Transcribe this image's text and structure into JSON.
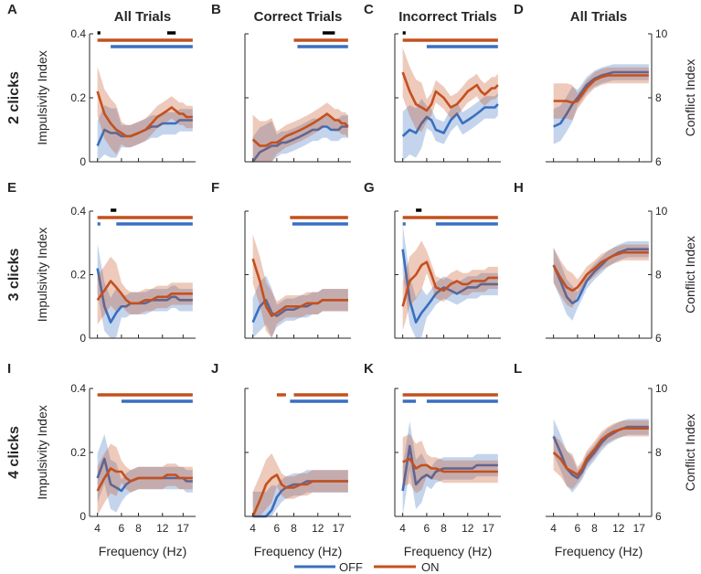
{
  "colors": {
    "off": "#3a6fc0",
    "on": "#c4501e",
    "sig": "#000000",
    "axis": "#262626"
  },
  "legend": {
    "off_label": "OFF",
    "on_label": "ON"
  },
  "row_labels": [
    "2 clicks",
    "3 clicks",
    "4 clicks"
  ],
  "column_titles": [
    "All Trials",
    "Correct Trials",
    "Incorrect Trials",
    "All Trials"
  ],
  "axis_text": {
    "xlabel": "Frequency (Hz)",
    "ylabel_left": "Impulsivity Index",
    "ylabel_right": "Conflict Index",
    "x_ticks": [
      "4",
      "6",
      "8",
      "12",
      "17"
    ],
    "y_ticks_left": [
      "0",
      "0.2",
      "0.4"
    ],
    "y_ticks_right": [
      "6",
      "8",
      "10"
    ]
  },
  "chart_data": {
    "type": "line",
    "x": [
      4,
      4.5,
      5,
      5.5,
      6,
      6.5,
      7,
      8,
      9,
      10,
      11,
      12,
      13,
      14,
      15,
      16,
      17,
      18,
      19,
      20
    ],
    "x_ticks": [
      4,
      6,
      8,
      12,
      17
    ],
    "left_ylim": [
      0,
      0.4
    ],
    "right_ylim": [
      6,
      10
    ],
    "panels": [
      {
        "letter": "A",
        "row": 0,
        "col": 0,
        "title": "All Trials",
        "axis": "left",
        "off": [
          0.05,
          0.1,
          0.09,
          0.09,
          0.08,
          0.08,
          0.08,
          0.09,
          0.1,
          0.11,
          0.11,
          0.12,
          0.12,
          0.12,
          0.12,
          0.13,
          0.13,
          0.13,
          0.13,
          0.13
        ],
        "on": [
          0.22,
          0.15,
          0.12,
          0.1,
          0.09,
          0.08,
          0.08,
          0.09,
          0.1,
          0.12,
          0.14,
          0.15,
          0.16,
          0.17,
          0.16,
          0.15,
          0.15,
          0.14,
          0.14,
          0.14
        ],
        "sig_black": [
          [
            4,
            4.2
          ],
          [
            13,
            15
          ]
        ],
        "sig_on": [
          [
            4,
            20
          ]
        ],
        "sig_off": [
          [
            5,
            20
          ]
        ]
      },
      {
        "letter": "B",
        "row": 0,
        "col": 1,
        "title": "Correct Trials",
        "axis": "left",
        "off": [
          0.0,
          0.03,
          0.04,
          0.05,
          0.05,
          0.06,
          0.06,
          0.07,
          0.08,
          0.09,
          0.1,
          0.1,
          0.11,
          0.11,
          0.1,
          0.1,
          0.1,
          0.11,
          0.11,
          0.11
        ],
        "on": [
          0.07,
          0.05,
          0.05,
          0.06,
          0.06,
          0.07,
          0.08,
          0.09,
          0.1,
          0.11,
          0.12,
          0.13,
          0.14,
          0.15,
          0.14,
          0.13,
          0.13,
          0.12,
          0.12,
          0.11
        ],
        "sig_black": [
          [
            13,
            16
          ]
        ],
        "sig_on": [
          [
            8,
            20
          ]
        ],
        "sig_off": [
          [
            8.5,
            20
          ]
        ]
      },
      {
        "letter": "C",
        "row": 0,
        "col": 2,
        "title": "Incorrect Trials",
        "axis": "left",
        "off": [
          0.08,
          0.1,
          0.09,
          0.12,
          0.14,
          0.13,
          0.1,
          0.09,
          0.13,
          0.15,
          0.12,
          0.13,
          0.14,
          0.15,
          0.16,
          0.17,
          0.17,
          0.17,
          0.17,
          0.18
        ],
        "on": [
          0.28,
          0.22,
          0.18,
          0.17,
          0.16,
          0.18,
          0.22,
          0.2,
          0.17,
          0.18,
          0.2,
          0.22,
          0.23,
          0.24,
          0.22,
          0.21,
          0.22,
          0.23,
          0.23,
          0.24
        ],
        "sig_black": [
          [
            4,
            4.2
          ]
        ],
        "sig_on": [
          [
            4,
            20
          ]
        ],
        "sig_off": [
          [
            6,
            20
          ]
        ]
      },
      {
        "letter": "D",
        "row": 0,
        "col": 3,
        "title": "All Trials",
        "axis": "right",
        "off": [
          7.1,
          7.2,
          7.5,
          7.8,
          8.0,
          8.2,
          8.4,
          8.6,
          8.7,
          8.75,
          8.8,
          8.8,
          8.8,
          8.8,
          8.8,
          8.8,
          8.8,
          8.8,
          8.8,
          8.8
        ],
        "on": [
          7.9,
          7.9,
          7.9,
          7.85,
          7.9,
          8.1,
          8.3,
          8.55,
          8.65,
          8.7,
          8.7,
          8.7,
          8.7,
          8.7,
          8.7,
          8.7,
          8.7,
          8.7,
          8.7,
          8.7
        ],
        "sig_black": [],
        "sig_on": [],
        "sig_off": []
      },
      {
        "letter": "E",
        "row": 1,
        "col": 0,
        "title": "",
        "axis": "left",
        "off": [
          0.22,
          0.1,
          0.05,
          0.08,
          0.1,
          0.1,
          0.11,
          0.11,
          0.11,
          0.12,
          0.12,
          0.12,
          0.12,
          0.13,
          0.13,
          0.12,
          0.12,
          0.12,
          0.12,
          0.12
        ],
        "on": [
          0.12,
          0.15,
          0.18,
          0.16,
          0.14,
          0.12,
          0.11,
          0.11,
          0.12,
          0.12,
          0.13,
          0.13,
          0.13,
          0.14,
          0.14,
          0.14,
          0.14,
          0.14,
          0.14,
          0.14
        ],
        "sig_black": [
          [
            5,
            5.5
          ]
        ],
        "sig_on": [
          [
            4,
            20
          ]
        ],
        "sig_off": [
          [
            4,
            4.2
          ],
          [
            5.5,
            20
          ]
        ]
      },
      {
        "letter": "F",
        "row": 1,
        "col": 1,
        "title": "",
        "axis": "left",
        "off": [
          0.05,
          0.1,
          0.12,
          0.08,
          0.07,
          0.08,
          0.09,
          0.09,
          0.1,
          0.1,
          0.11,
          0.11,
          0.12,
          0.12,
          0.12,
          0.12,
          0.12,
          0.12,
          0.12,
          0.12
        ],
        "on": [
          0.25,
          0.18,
          0.1,
          0.07,
          0.08,
          0.09,
          0.1,
          0.1,
          0.1,
          0.11,
          0.11,
          0.11,
          0.12,
          0.12,
          0.12,
          0.12,
          0.12,
          0.12,
          0.12,
          0.12
        ],
        "sig_black": [],
        "sig_on": [
          [
            7.5,
            20
          ]
        ],
        "sig_off": [
          [
            7.8,
            20
          ]
        ]
      },
      {
        "letter": "G",
        "row": 1,
        "col": 2,
        "title": "",
        "axis": "left",
        "off": [
          0.28,
          0.12,
          0.05,
          0.08,
          0.1,
          0.12,
          0.14,
          0.16,
          0.15,
          0.14,
          0.15,
          0.16,
          0.16,
          0.16,
          0.17,
          0.17,
          0.17,
          0.17,
          0.17,
          0.17
        ],
        "on": [
          0.1,
          0.18,
          0.2,
          0.23,
          0.24,
          0.2,
          0.16,
          0.15,
          0.17,
          0.18,
          0.17,
          0.17,
          0.18,
          0.18,
          0.18,
          0.18,
          0.19,
          0.19,
          0.19,
          0.19
        ],
        "sig_black": [
          [
            5,
            5.5
          ]
        ],
        "sig_on": [
          [
            4,
            20
          ]
        ],
        "sig_off": [
          [
            4,
            4.2
          ],
          [
            7,
            20
          ]
        ]
      },
      {
        "letter": "H",
        "row": 1,
        "col": 3,
        "title": "",
        "axis": "right",
        "off": [
          8.3,
          7.8,
          7.3,
          7.1,
          7.2,
          7.5,
          7.8,
          8.1,
          8.3,
          8.5,
          8.6,
          8.7,
          8.75,
          8.8,
          8.8,
          8.8,
          8.8,
          8.8,
          8.8,
          8.8
        ],
        "on": [
          8.3,
          7.9,
          7.6,
          7.5,
          7.6,
          7.8,
          8.0,
          8.2,
          8.4,
          8.5,
          8.6,
          8.65,
          8.7,
          8.7,
          8.7,
          8.7,
          8.7,
          8.7,
          8.7,
          8.7
        ],
        "sig_black": [],
        "sig_on": [],
        "sig_off": []
      },
      {
        "letter": "I",
        "row": 2,
        "col": 0,
        "title": "",
        "axis": "left",
        "off": [
          0.12,
          0.18,
          0.1,
          0.09,
          0.08,
          0.1,
          0.11,
          0.12,
          0.12,
          0.12,
          0.12,
          0.12,
          0.12,
          0.12,
          0.12,
          0.12,
          0.12,
          0.11,
          0.11,
          0.11
        ],
        "on": [
          0.08,
          0.12,
          0.15,
          0.14,
          0.14,
          0.12,
          0.11,
          0.12,
          0.12,
          0.12,
          0.12,
          0.12,
          0.13,
          0.13,
          0.13,
          0.12,
          0.12,
          0.12,
          0.12,
          0.12
        ],
        "sig_black": [],
        "sig_on": [
          [
            4,
            20
          ]
        ],
        "sig_off": [
          [
            6,
            20
          ]
        ]
      },
      {
        "letter": "J",
        "row": 2,
        "col": 1,
        "title": "",
        "axis": "left",
        "off": [
          0.0,
          0.0,
          0.0,
          0.02,
          0.06,
          0.08,
          0.09,
          0.1,
          0.1,
          0.11,
          0.11,
          0.11,
          0.11,
          0.11,
          0.11,
          0.11,
          0.11,
          0.11,
          0.11,
          0.11
        ],
        "on": [
          0.0,
          0.05,
          0.1,
          0.12,
          0.13,
          0.1,
          0.09,
          0.09,
          0.1,
          0.1,
          0.11,
          0.11,
          0.11,
          0.11,
          0.11,
          0.11,
          0.11,
          0.11,
          0.11,
          0.11
        ],
        "sig_black": [],
        "sig_on": [
          [
            6,
            7
          ],
          [
            8,
            20
          ]
        ],
        "sig_off": [
          [
            7.5,
            20
          ]
        ]
      },
      {
        "letter": "K",
        "row": 2,
        "col": 2,
        "title": "",
        "axis": "left",
        "off": [
          0.08,
          0.22,
          0.1,
          0.12,
          0.13,
          0.12,
          0.14,
          0.15,
          0.15,
          0.15,
          0.15,
          0.15,
          0.15,
          0.16,
          0.16,
          0.16,
          0.16,
          0.16,
          0.16,
          0.16
        ],
        "on": [
          0.17,
          0.18,
          0.15,
          0.16,
          0.16,
          0.15,
          0.15,
          0.14,
          0.14,
          0.14,
          0.14,
          0.14,
          0.14,
          0.14,
          0.14,
          0.14,
          0.14,
          0.14,
          0.14,
          0.14
        ],
        "sig_black": [],
        "sig_on": [
          [
            4,
            20
          ]
        ],
        "sig_off": [
          [
            4,
            5
          ],
          [
            6,
            20
          ]
        ]
      },
      {
        "letter": "L",
        "row": 2,
        "col": 3,
        "title": "",
        "axis": "right",
        "off": [
          8.5,
          8.0,
          7.5,
          7.3,
          7.2,
          7.4,
          7.7,
          8.0,
          8.3,
          8.5,
          8.6,
          8.7,
          8.75,
          8.8,
          8.8,
          8.8,
          8.8,
          8.8,
          8.8,
          8.8
        ],
        "on": [
          8.0,
          7.8,
          7.5,
          7.4,
          7.3,
          7.5,
          7.8,
          8.1,
          8.4,
          8.55,
          8.65,
          8.7,
          8.75,
          8.75,
          8.75,
          8.75,
          8.75,
          8.75,
          8.75,
          8.75
        ],
        "sig_black": [],
        "sig_on": [],
        "sig_off": []
      }
    ]
  }
}
